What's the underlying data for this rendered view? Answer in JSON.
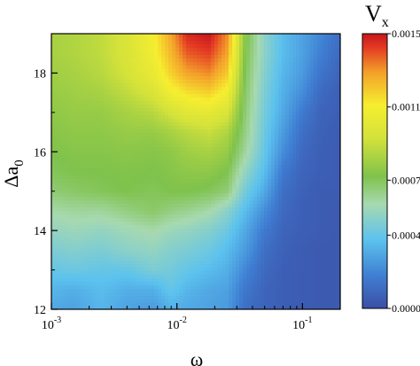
{
  "chart_data": {
    "type": "heatmap",
    "x_scale": "log",
    "xlim": [
      0.001,
      0.2
    ],
    "ylim": [
      12,
      19
    ],
    "x_ticks": [
      {
        "value": 0.001,
        "base": "10",
        "exp": "-3"
      },
      {
        "value": 0.01,
        "base": "10",
        "exp": "-2"
      },
      {
        "value": 0.1,
        "base": "10",
        "exp": "-1"
      }
    ],
    "y_ticks": [
      {
        "value": 12,
        "label": "12"
      },
      {
        "value": 14,
        "label": "14"
      },
      {
        "value": 16,
        "label": "16"
      },
      {
        "value": 18,
        "label": "18"
      }
    ],
    "xlabel": "ω",
    "ylabel": {
      "main": "Δa",
      "sub": "0"
    },
    "colorbar": {
      "title": {
        "main": "V",
        "sub": "x"
      },
      "min": 0.0,
      "max": 0.0015,
      "tick_labels": [
        {
          "value": 0.0,
          "label": "0.0000"
        },
        {
          "value": 0.0004,
          "label": "0.0004"
        },
        {
          "value": 0.0007,
          "label": "0.0007"
        },
        {
          "value": 0.0011,
          "label": "0.0011"
        },
        {
          "value": 0.0015,
          "label": "0.0015"
        }
      ]
    },
    "grid": false,
    "colors": [
      "#3b4fa6",
      "#3f7fd3",
      "#5cc2ee",
      "#a7d9b0",
      "#7fc24c",
      "#d4e23a",
      "#f6ee2f",
      "#f3a02a",
      "#e33a23",
      "#c6161d"
    ],
    "x": [
      0.001,
      0.0015,
      0.0025,
      0.004,
      0.0065,
      0.009,
      0.012,
      0.018,
      0.025,
      0.035,
      0.05,
      0.07,
      0.1,
      0.14,
      0.2
    ],
    "y": [
      12.0,
      12.5,
      13.0,
      13.5,
      14.0,
      14.5,
      15.0,
      15.5,
      16.0,
      16.5,
      17.0,
      17.5,
      18.0,
      18.5,
      19.0
    ],
    "z": [
      [
        0.0003,
        0.00028,
        0.00034,
        0.00028,
        0.00026,
        0.00032,
        0.0003,
        0.00028,
        0.00026,
        0.00012,
        8e-05,
        6e-05,
        5e-05,
        4e-05,
        4e-05
      ],
      [
        0.00034,
        0.00032,
        0.00036,
        0.00032,
        0.00032,
        0.0004,
        0.00034,
        0.0003,
        0.00028,
        0.00015,
        8e-05,
        6e-05,
        5e-05,
        4e-05,
        4e-05
      ],
      [
        0.0004,
        0.00042,
        0.0004,
        0.0004,
        0.00046,
        0.00044,
        0.0004,
        0.00036,
        0.00032,
        0.0002,
        0.0001,
        6e-05,
        5e-05,
        4e-05,
        4e-05
      ],
      [
        0.00046,
        0.00048,
        0.00046,
        0.0005,
        0.00052,
        0.00048,
        0.00046,
        0.00042,
        0.00036,
        0.00026,
        0.00012,
        7e-05,
        5e-05,
        4e-05,
        4e-05
      ],
      [
        0.00052,
        0.00054,
        0.00052,
        0.00055,
        0.00058,
        0.00054,
        0.00052,
        0.00048,
        0.00042,
        0.0003,
        0.00016,
        8e-05,
        6e-05,
        5e-05,
        4e-05
      ],
      [
        0.00058,
        0.0006,
        0.0006,
        0.00064,
        0.00068,
        0.00064,
        0.00062,
        0.00058,
        0.0005,
        0.00036,
        0.00022,
        0.0001,
        6e-05,
        5e-05,
        4e-05
      ],
      [
        0.00066,
        0.00068,
        0.0007,
        0.00072,
        0.0007,
        0.00072,
        0.00072,
        0.0007,
        0.00066,
        0.00044,
        0.0003,
        0.00012,
        7e-05,
        5e-05,
        5e-05
      ],
      [
        0.0007,
        0.00072,
        0.00072,
        0.00073,
        0.00072,
        0.00074,
        0.00076,
        0.00076,
        0.00072,
        0.00052,
        0.00036,
        0.00016,
        8e-05,
        6e-05,
        5e-05
      ],
      [
        0.00072,
        0.00074,
        0.00074,
        0.00075,
        0.00074,
        0.00076,
        0.0008,
        0.00082,
        0.00078,
        0.0006,
        0.0004,
        0.00022,
        0.0001,
        6e-05,
        5e-05
      ],
      [
        0.00074,
        0.00076,
        0.00076,
        0.00078,
        0.00078,
        0.00082,
        0.00086,
        0.0009,
        0.00084,
        0.00064,
        0.00042,
        0.00026,
        0.00012,
        7e-05,
        5e-05
      ],
      [
        0.00076,
        0.00078,
        0.00078,
        0.00082,
        0.00086,
        0.00094,
        0.001,
        0.00102,
        0.00096,
        0.00066,
        0.00044,
        0.0003,
        0.00016,
        8e-05,
        6e-05
      ],
      [
        0.00078,
        0.0008,
        0.00082,
        0.00088,
        0.00096,
        0.00108,
        0.00114,
        0.00118,
        0.00108,
        0.00068,
        0.00046,
        0.00032,
        0.00022,
        0.0001,
        6e-05
      ],
      [
        0.0008,
        0.00082,
        0.00086,
        0.00094,
        0.00104,
        0.00118,
        0.00128,
        0.00132,
        0.0012,
        0.0007,
        0.00048,
        0.00034,
        0.00026,
        0.00014,
        8e-05
      ],
      [
        0.00082,
        0.00084,
        0.00088,
        0.00096,
        0.00108,
        0.00124,
        0.00138,
        0.00142,
        0.00128,
        0.00072,
        0.0005,
        0.00036,
        0.00028,
        0.00018,
        0.0001
      ],
      [
        0.00082,
        0.00084,
        0.00088,
        0.00096,
        0.0011,
        0.00128,
        0.00146,
        0.0015,
        0.00132,
        0.00074,
        0.0005,
        0.00036,
        0.00028,
        0.0002,
        0.00012
      ]
    ]
  }
}
